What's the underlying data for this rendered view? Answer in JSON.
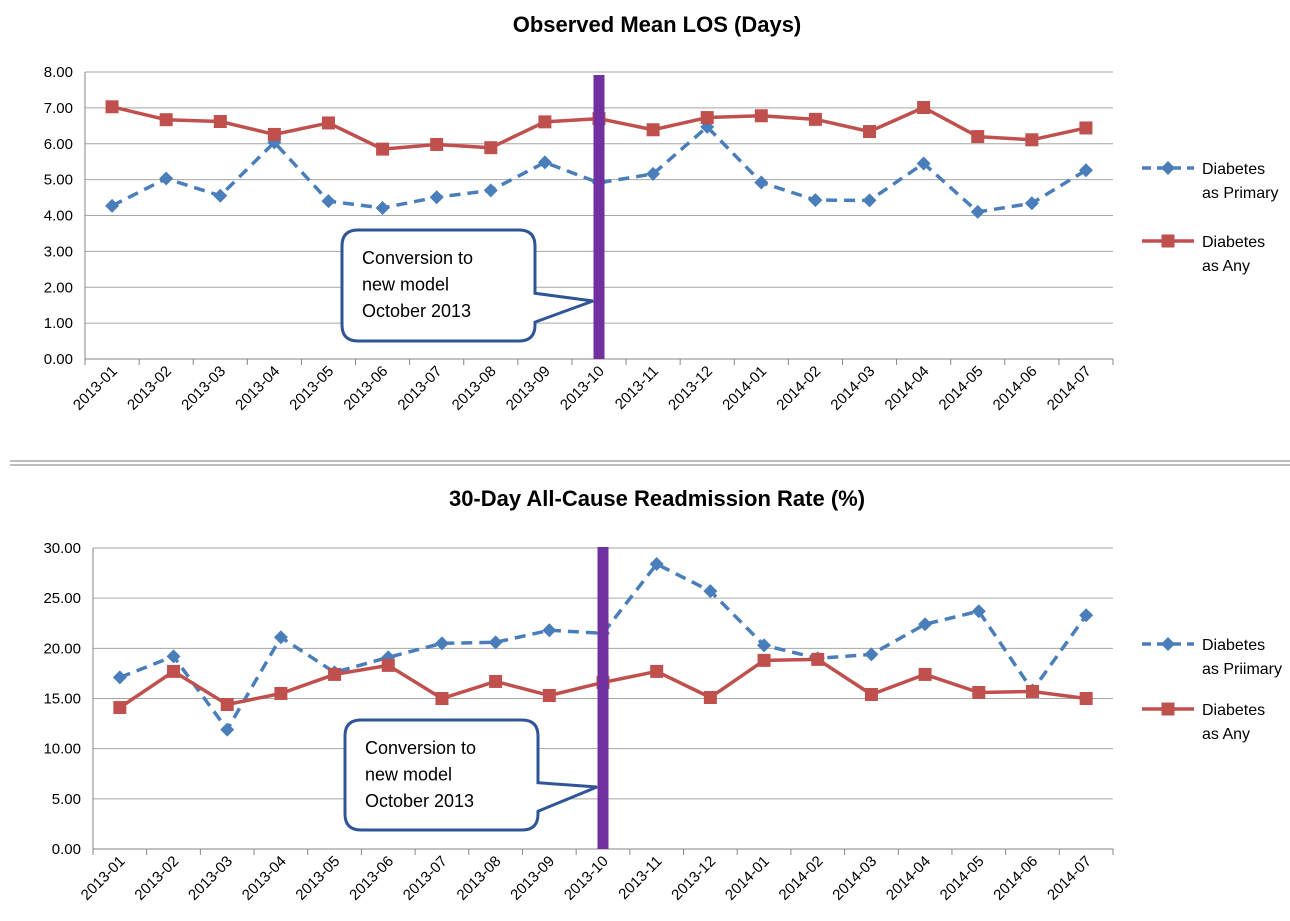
{
  "colors": {
    "primary_series": "#4a7ebb",
    "any_series": "#c0504d",
    "marker_line": "#7030a0",
    "grid": "#a6a6a6",
    "callout_border": "#2f5597"
  },
  "chart_data": [
    {
      "type": "line",
      "title": "Observed Mean LOS (Days)",
      "categories": [
        "2013-01",
        "2013-02",
        "2013-03",
        "2013-04",
        "2013-05",
        "2013-06",
        "2013-07",
        "2013-08",
        "2013-09",
        "2013-10",
        "2013-11",
        "2013-12",
        "2014-01",
        "2014-02",
        "2014-03",
        "2014-04",
        "2014-05",
        "2014-06",
        "2014-07"
      ],
      "yticks": [
        "0.00",
        "1.00",
        "2.00",
        "3.00",
        "4.00",
        "5.00",
        "6.00",
        "7.00",
        "8.00"
      ],
      "ylim": [
        0,
        8
      ],
      "grid": true,
      "legend_position": "right",
      "series": [
        {
          "name": "Diabetes as Primary",
          "legend_lines": [
            "Diabetes",
            "as Primary"
          ],
          "style": "dashed",
          "marker": "diamond",
          "values": [
            4.27,
            5.03,
            4.55,
            6.04,
            4.4,
            4.21,
            4.51,
            4.7,
            5.48,
            4.91,
            5.16,
            6.47,
            4.92,
            4.43,
            4.42,
            5.45,
            4.1,
            4.34,
            5.26
          ]
        },
        {
          "name": "Diabetes as Any",
          "legend_lines": [
            "Diabetes",
            "as Any"
          ],
          "style": "solid",
          "marker": "square",
          "values": [
            7.03,
            6.67,
            6.62,
            6.26,
            6.58,
            5.85,
            5.98,
            5.89,
            6.61,
            6.7,
            6.39,
            6.73,
            6.78,
            6.68,
            6.34,
            7.01,
            6.2,
            6.11,
            6.44
          ]
        }
      ],
      "annotation": {
        "lines": [
          "Conversion to",
          "new model",
          "October 2013"
        ],
        "marker_category": "2013-10"
      }
    },
    {
      "type": "line",
      "title": "30-Day All-Cause Readmission Rate (%)",
      "categories": [
        "2013-01",
        "2013-02",
        "2013-03",
        "2013-04",
        "2013-05",
        "2013-06",
        "2013-07",
        "2013-08",
        "2013-09",
        "2013-10",
        "2013-11",
        "2013-12",
        "2014-01",
        "2014-02",
        "2014-03",
        "2014-04",
        "2014-05",
        "2014-06",
        "2014-07"
      ],
      "yticks": [
        "0.00",
        "5.00",
        "10.00",
        "15.00",
        "20.00",
        "25.00",
        "30.00"
      ],
      "ylim": [
        0,
        30
      ],
      "grid": true,
      "legend_position": "right",
      "series": [
        {
          "name": "Diabetes as Priimary",
          "legend_lines": [
            "Diabetes",
            "as Priimary"
          ],
          "style": "dashed",
          "marker": "diamond",
          "values": [
            17.1,
            19.2,
            11.9,
            21.1,
            17.6,
            19.1,
            20.5,
            20.6,
            21.8,
            21.5,
            28.4,
            25.7,
            20.3,
            19.0,
            19.4,
            22.4,
            23.7,
            15.8,
            23.3
          ]
        },
        {
          "name": "Diabetes as Any",
          "legend_lines": [
            "Diabetes",
            "as Any"
          ],
          "style": "solid",
          "marker": "square",
          "values": [
            14.1,
            17.7,
            14.4,
            15.5,
            17.4,
            18.3,
            15.0,
            16.7,
            15.3,
            16.6,
            17.7,
            15.1,
            18.8,
            18.9,
            15.4,
            17.4,
            15.6,
            15.7,
            15.0
          ]
        }
      ],
      "annotation": {
        "lines": [
          "Conversion to",
          "new model",
          "October 2013"
        ],
        "marker_category": "2013-10"
      }
    }
  ]
}
